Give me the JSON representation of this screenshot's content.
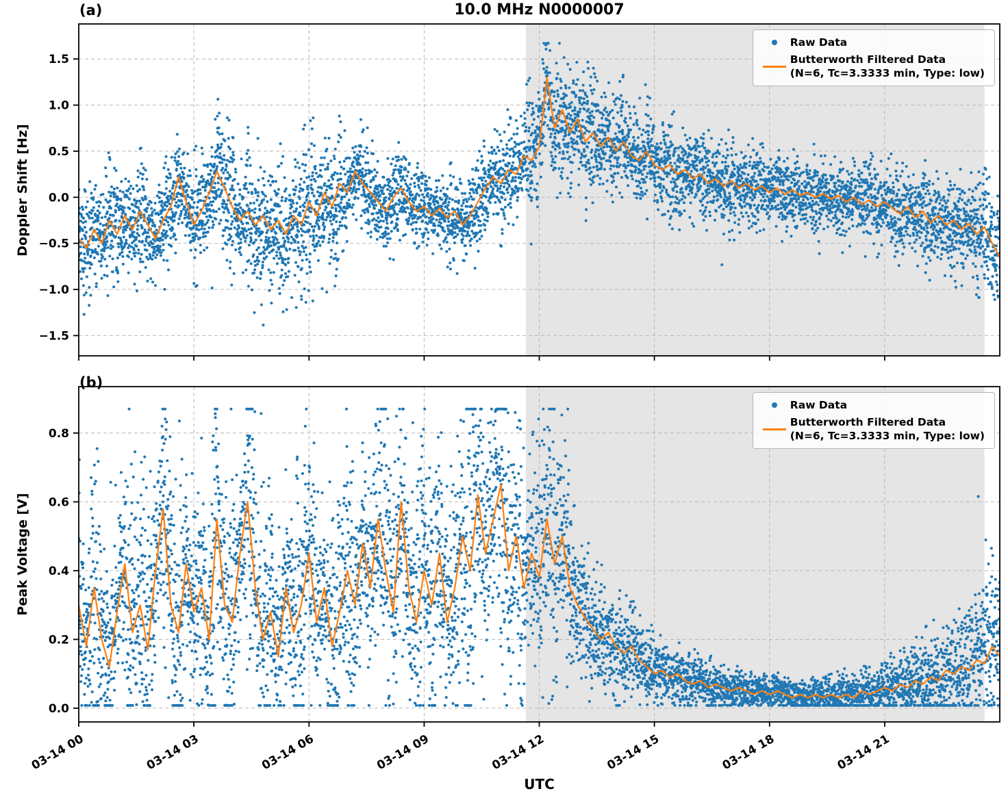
{
  "figure": {
    "title": "10.0 MHz N0000007",
    "xlabel": "UTC",
    "panels": [
      {
        "label": "(a)",
        "ylabel": "Doppler Shift [Hz]"
      },
      {
        "label": "(b)",
        "ylabel": "Peak Voltage [V]"
      }
    ],
    "legend": {
      "raw_label": "Raw Data",
      "filtered_label": "Butterworth Filtered Data",
      "filtered_sub": "(N=6, Tc=3.3333 min, Type: low)"
    },
    "colors": {
      "raw": "#1f77b4",
      "filtered": "#ff7f0e",
      "shade": "#e5e5e5",
      "grid": "#b0b0b0"
    }
  },
  "chart_data": [
    {
      "type": "scatter",
      "title": "10.0 MHz N0000007",
      "xlabel": "UTC",
      "ylabel": "Doppler Shift [Hz]",
      "legend": [
        "Raw Data",
        "Butterworth Filtered Data (N=6, Tc=3.3333 min, Type: low)"
      ],
      "legend_position": "upper right",
      "grid": "dashed",
      "xlim_hours": [
        0,
        24
      ],
      "x_ticks_hours": [
        0,
        3,
        6,
        9,
        12,
        15,
        18,
        21
      ],
      "x_tick_labels": [
        "03-14 00",
        "03-14 03",
        "03-14 06",
        "03-14 09",
        "03-14 12",
        "03-14 15",
        "03-14 18",
        "03-14 21"
      ],
      "ylim": [
        -1.72,
        1.88
      ],
      "y_ticks": [
        -1.5,
        -1.0,
        -0.5,
        0.0,
        0.5,
        1.0,
        1.5
      ],
      "shaded_span_hours": [
        11.65,
        23.6
      ],
      "series": [
        {
          "name": "Raw Data",
          "style": "scatter",
          "envelope": {
            "x_start": 0,
            "x_step": 1,
            "spread": [
              0.25,
              0.25,
              0.25,
              0.25,
              0.3,
              0.3,
              0.33,
              0.22,
              0.2,
              0.18,
              0.2,
              0.22,
              0.3,
              0.28,
              0.25,
              0.22,
              0.2,
              0.2,
              0.18,
              0.18,
              0.18,
              0.2,
              0.2,
              0.22,
              0.3
            ],
            "min": -1.52,
            "max": 1.67
          }
        },
        {
          "name": "Butterworth Filtered Data (N=6, Tc=3.3333 min, Type: low)",
          "style": "line",
          "x_start": 0,
          "x_step": 0.2,
          "y": [
            -0.45,
            -0.55,
            -0.35,
            -0.5,
            -0.25,
            -0.4,
            -0.2,
            -0.35,
            -0.15,
            -0.3,
            -0.45,
            -0.25,
            -0.1,
            0.22,
            -0.05,
            -0.3,
            -0.15,
            0.05,
            0.28,
            0.1,
            -0.1,
            -0.25,
            -0.15,
            -0.3,
            -0.2,
            -0.35,
            -0.25,
            -0.4,
            -0.2,
            -0.3,
            -0.05,
            -0.2,
            0.05,
            -0.1,
            0.15,
            0.05,
            0.28,
            0.15,
            0.05,
            -0.05,
            -0.15,
            0.0,
            0.1,
            -0.05,
            -0.15,
            -0.1,
            -0.2,
            -0.12,
            -0.22,
            -0.15,
            -0.3,
            -0.2,
            -0.05,
            0.1,
            0.22,
            0.15,
            0.3,
            0.25,
            0.45,
            0.4,
            0.55,
            1.3,
            0.75,
            0.95,
            0.7,
            0.85,
            0.6,
            0.7,
            0.55,
            0.65,
            0.5,
            0.6,
            0.45,
            0.4,
            0.5,
            0.35,
            0.3,
            0.35,
            0.25,
            0.3,
            0.2,
            0.25,
            0.15,
            0.2,
            0.12,
            0.18,
            0.1,
            0.15,
            0.08,
            0.12,
            0.05,
            0.1,
            0.03,
            0.08,
            0.02,
            0.05,
            0.0,
            0.04,
            -0.02,
            0.02,
            -0.05,
            0.0,
            -0.08,
            -0.03,
            -0.1,
            -0.05,
            -0.12,
            -0.18,
            -0.1,
            -0.22,
            -0.15,
            -0.28,
            -0.2,
            -0.3,
            -0.25,
            -0.35,
            -0.28,
            -0.4,
            -0.32,
            -0.5,
            -0.65
          ]
        }
      ]
    },
    {
      "type": "scatter",
      "title": "",
      "xlabel": "UTC",
      "ylabel": "Peak Voltage [V]",
      "legend": [
        "Raw Data",
        "Butterworth Filtered Data (N=6, Tc=3.3333 min, Type: low)"
      ],
      "legend_position": "upper right",
      "grid": "dashed",
      "xlim_hours": [
        0,
        24
      ],
      "x_ticks_hours": [
        0,
        3,
        6,
        9,
        12,
        15,
        18,
        21
      ],
      "x_tick_labels": [
        "03-14 00",
        "03-14 03",
        "03-14 06",
        "03-14 09",
        "03-14 12",
        "03-14 15",
        "03-14 18",
        "03-14 21"
      ],
      "ylim": [
        -0.04,
        0.935
      ],
      "y_ticks": [
        0.0,
        0.2,
        0.4,
        0.6,
        0.8
      ],
      "shaded_span_hours": [
        11.65,
        23.6
      ],
      "series": [
        {
          "name": "Raw Data",
          "style": "scatter",
          "envelope": {
            "x_start": 0,
            "x_step": 1,
            "spread": [
              0.13,
              0.13,
              0.14,
              0.15,
              0.15,
              0.13,
              0.14,
              0.14,
              0.15,
              0.15,
              0.16,
              0.16,
              0.15,
              0.11,
              0.07,
              0.05,
              0.04,
              0.03,
              0.025,
              0.025,
              0.03,
              0.04,
              0.06,
              0.08,
              0.12
            ],
            "min": 0.008,
            "max": 0.87
          }
        },
        {
          "name": "Butterworth Filtered Data (N=6, Tc=3.3333 min, Type: low)",
          "style": "line",
          "x_start": 0,
          "x_step": 0.2,
          "y": [
            0.3,
            0.18,
            0.35,
            0.2,
            0.12,
            0.28,
            0.42,
            0.22,
            0.3,
            0.17,
            0.4,
            0.58,
            0.3,
            0.22,
            0.42,
            0.28,
            0.35,
            0.2,
            0.55,
            0.3,
            0.25,
            0.45,
            0.6,
            0.35,
            0.2,
            0.28,
            0.15,
            0.35,
            0.22,
            0.3,
            0.45,
            0.25,
            0.35,
            0.18,
            0.28,
            0.4,
            0.3,
            0.48,
            0.35,
            0.55,
            0.4,
            0.28,
            0.6,
            0.35,
            0.25,
            0.4,
            0.3,
            0.45,
            0.25,
            0.35,
            0.5,
            0.4,
            0.62,
            0.45,
            0.55,
            0.65,
            0.4,
            0.5,
            0.35,
            0.45,
            0.38,
            0.55,
            0.42,
            0.5,
            0.35,
            0.3,
            0.26,
            0.23,
            0.2,
            0.22,
            0.18,
            0.16,
            0.18,
            0.14,
            0.12,
            0.1,
            0.11,
            0.09,
            0.1,
            0.08,
            0.07,
            0.08,
            0.06,
            0.07,
            0.06,
            0.05,
            0.06,
            0.05,
            0.04,
            0.05,
            0.04,
            0.05,
            0.04,
            0.03,
            0.04,
            0.03,
            0.04,
            0.03,
            0.04,
            0.03,
            0.04,
            0.03,
            0.05,
            0.04,
            0.05,
            0.06,
            0.05,
            0.07,
            0.06,
            0.08,
            0.07,
            0.09,
            0.08,
            0.11,
            0.1,
            0.12,
            0.11,
            0.14,
            0.13,
            0.18,
            0.15
          ]
        }
      ]
    }
  ]
}
